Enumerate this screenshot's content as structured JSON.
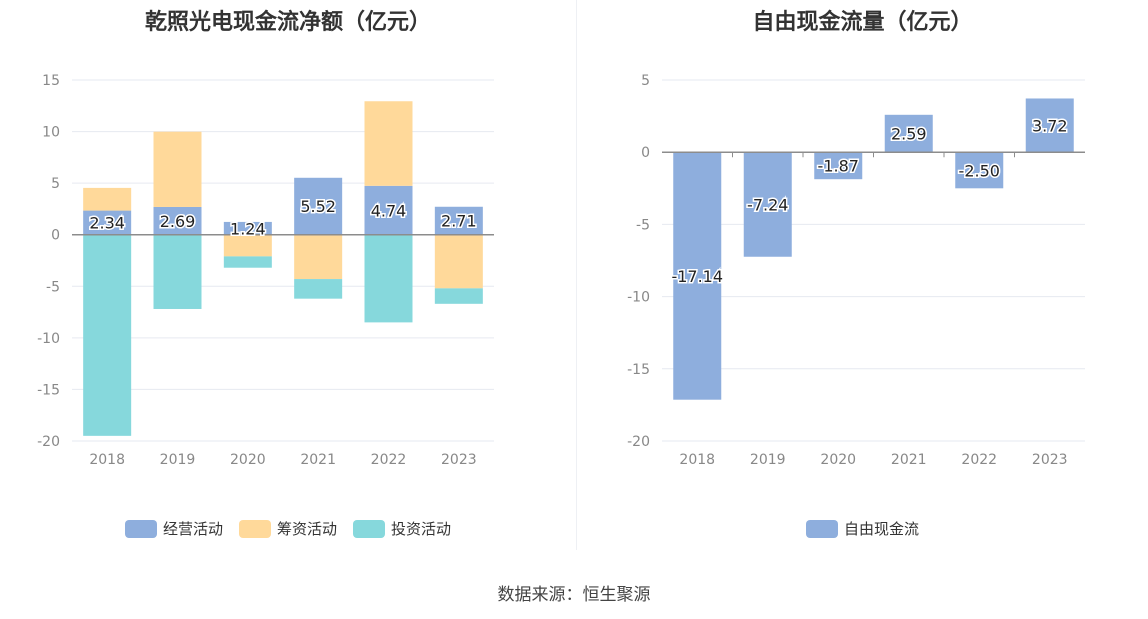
{
  "source": "数据来源：恒生聚源",
  "chart_data": [
    {
      "type": "bar",
      "stacked": true,
      "title": "乾照光电现金流净额（亿元）",
      "categories": [
        "2018",
        "2019",
        "2020",
        "2021",
        "2022",
        "2023"
      ],
      "ylim": [
        -20,
        15
      ],
      "yticks": [
        15,
        10,
        5,
        0,
        -5,
        -10,
        -15,
        -20
      ],
      "grid": true,
      "legend_position": "bottom",
      "series": [
        {
          "name": "经营活动",
          "color": "#8eaedd",
          "values": [
            2.34,
            2.69,
            1.24,
            5.52,
            4.74,
            2.71
          ],
          "labels": [
            "2.34",
            "2.69",
            "1.24",
            "5.52",
            "4.74",
            "2.71"
          ]
        },
        {
          "name": "筹资活动",
          "color": "#ffd99a",
          "values": [
            2.2,
            7.3,
            -2.1,
            -4.3,
            8.2,
            -5.2
          ]
        },
        {
          "name": "投资活动",
          "color": "#86d8dc",
          "values": [
            -19.5,
            -7.2,
            -1.1,
            -1.9,
            -8.5,
            -1.5
          ]
        }
      ]
    },
    {
      "type": "bar",
      "title": "自由现金流量（亿元）",
      "categories": [
        "2018",
        "2019",
        "2020",
        "2021",
        "2022",
        "2023"
      ],
      "ylim": [
        -20,
        5
      ],
      "yticks": [
        5,
        0,
        -5,
        -10,
        -15,
        -20
      ],
      "grid": true,
      "legend_position": "bottom",
      "series": [
        {
          "name": "自由现金流",
          "color": "#8eaedd",
          "values": [
            -17.14,
            -7.24,
            -1.87,
            2.59,
            -2.5,
            3.72
          ],
          "labels": [
            "-17.14",
            "-7.24",
            "-1.87",
            "2.59",
            "-2.50",
            "3.72"
          ]
        }
      ]
    }
  ]
}
